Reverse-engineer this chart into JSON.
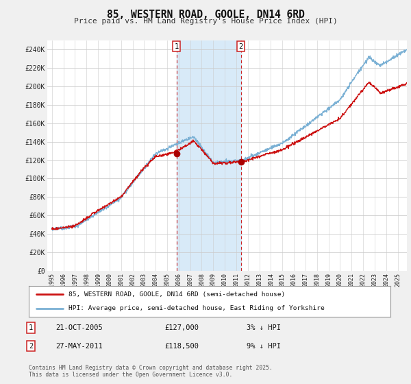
{
  "title": "85, WESTERN ROAD, GOOLE, DN14 6RD",
  "subtitle": "Price paid vs. HM Land Registry's House Price Index (HPI)",
  "ylim": [
    0,
    250000
  ],
  "yticks": [
    0,
    20000,
    40000,
    60000,
    80000,
    100000,
    120000,
    140000,
    160000,
    180000,
    200000,
    220000,
    240000
  ],
  "xlim_start": 1994.6,
  "xlim_end": 2025.8,
  "background_color": "#f0f0f0",
  "plot_bg_color": "#ffffff",
  "grid_color": "#cccccc",
  "hpi_color": "#7ab0d4",
  "price_color": "#cc1111",
  "shade_color": "#d8eaf8",
  "transaction1": {
    "date_str": "21-OCT-2005",
    "date_x": 2005.81,
    "price": 127000,
    "label": "1"
  },
  "transaction2": {
    "date_str": "27-MAY-2011",
    "date_x": 2011.4,
    "price": 118500,
    "label": "2"
  },
  "legend_line1": "85, WESTERN ROAD, GOOLE, DN14 6RD (semi-detached house)",
  "legend_line2": "HPI: Average price, semi-detached house, East Riding of Yorkshire",
  "footer": "Contains HM Land Registry data © Crown copyright and database right 2025.\nThis data is licensed under the Open Government Licence v3.0.",
  "xticks": [
    1995,
    1996,
    1997,
    1998,
    1999,
    2000,
    2001,
    2002,
    2003,
    2004,
    2005,
    2006,
    2007,
    2008,
    2009,
    2010,
    2011,
    2012,
    2013,
    2014,
    2015,
    2016,
    2017,
    2018,
    2019,
    2020,
    2021,
    2022,
    2023,
    2024,
    2025
  ]
}
